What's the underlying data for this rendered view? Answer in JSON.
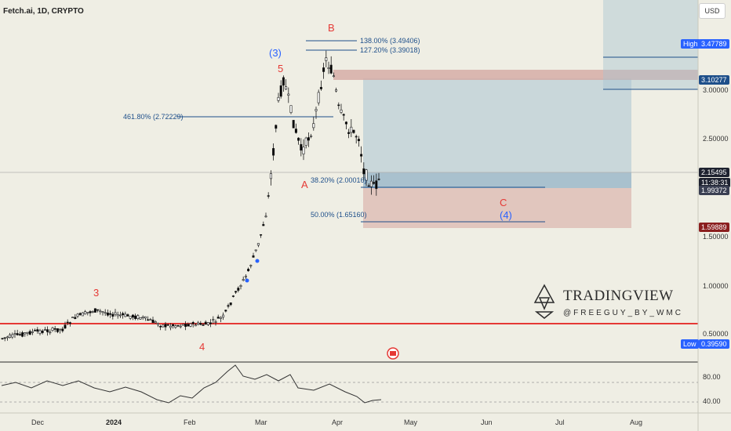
{
  "header": {
    "symbol_info": "Fetch.ai, 1D, CRYPTO"
  },
  "currency_button": "USD",
  "price_scale": {
    "ticks": [
      "3.00000",
      "2.50000",
      "1.50000",
      "1.00000",
      "0.50000"
    ],
    "high_label": "High",
    "high_value": "3.47789",
    "level_310": "3.10277",
    "current_price": "2.15495",
    "countdown": "11:38:31",
    "partial_price": "1.99372",
    "level_159": "1.59889",
    "low_label": "Low",
    "low_value": "0.39590"
  },
  "rsi_scale": {
    "upper": "80.00",
    "lower": "40.00"
  },
  "time_axis": [
    "Dec",
    "2024",
    "Feb",
    "Mar",
    "Apr",
    "May",
    "Jun",
    "Jul",
    "Aug"
  ],
  "fib_labels": {
    "f1380": "138.00% (3.49406)",
    "f1272": "127.20% (3.39018)",
    "f4618": "461.80% (2.72229)",
    "f382": "38.20% (2.00016)",
    "f500": "50.00% (1.65160)"
  },
  "wave_labels": {
    "w3_minor": "3",
    "w4_minor": "4",
    "w5": "5",
    "w3_major": "(3)",
    "wB": "B",
    "wA": "A",
    "wC": "C",
    "w4_major": "(4)"
  },
  "watermark": {
    "brand": "TRADINGVIEW",
    "author": "@FREEGUY_BY_WMC"
  },
  "colors": {
    "background": "#efeee4",
    "up_candle": "#ffffff",
    "down_candle": "#000000",
    "red_line": "#e53935",
    "blue_line": "#1e4f8a",
    "zone_blue": "#a9c4d1",
    "zone_red": "#d8b1a9",
    "wave_red": "#e53935",
    "wave_blue": "#2962ff",
    "high_tag": "#2962ff",
    "current_tag": "#1e2230",
    "red_tag": "#8b1f1f"
  }
}
